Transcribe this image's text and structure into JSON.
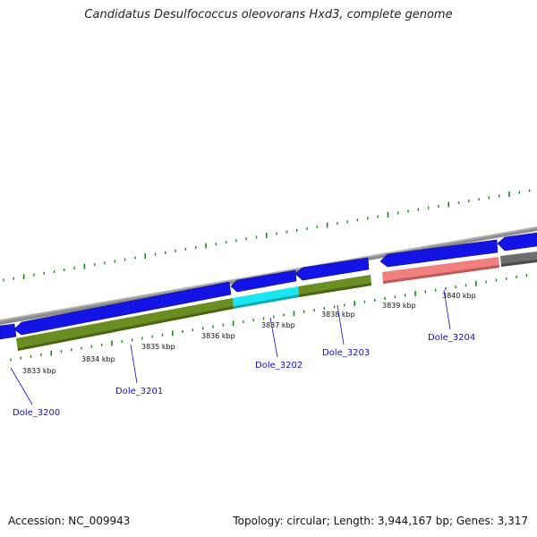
{
  "title": "Candidatus Desulfococcus oleovorans Hxd3, complete genome",
  "footer": {
    "accession": "Accession: NC_009943",
    "summary": "Topology: circular; Length: 3,944,167 bp; Genes: 3,317"
  },
  "colors": {
    "cds_arrow": "#1414e6",
    "cds_olive": "#6b8e23",
    "cds_cyan": "#19e6f0",
    "cds_pink": "#f08080",
    "cds_gray": "#6e6e6e",
    "backbone": "#8c8c8c",
    "tick": "#1a8c1a",
    "gene_label": "#1010cc"
  },
  "scale": {
    "ticks": [
      {
        "label": "3833 kbp"
      },
      {
        "label": "3834 kbp"
      },
      {
        "label": "3835 kbp"
      },
      {
        "label": "3836 kbp"
      },
      {
        "label": "3837 kbp"
      },
      {
        "label": "3838 kbp"
      },
      {
        "label": "3839 kbp"
      },
      {
        "label": "3840 kbp"
      }
    ]
  },
  "genes": [
    {
      "label": "Dole_3200"
    },
    {
      "label": "Dole_3201"
    },
    {
      "label": "Dole_3202"
    },
    {
      "label": "Dole_3203"
    },
    {
      "label": "Dole_3204"
    }
  ]
}
